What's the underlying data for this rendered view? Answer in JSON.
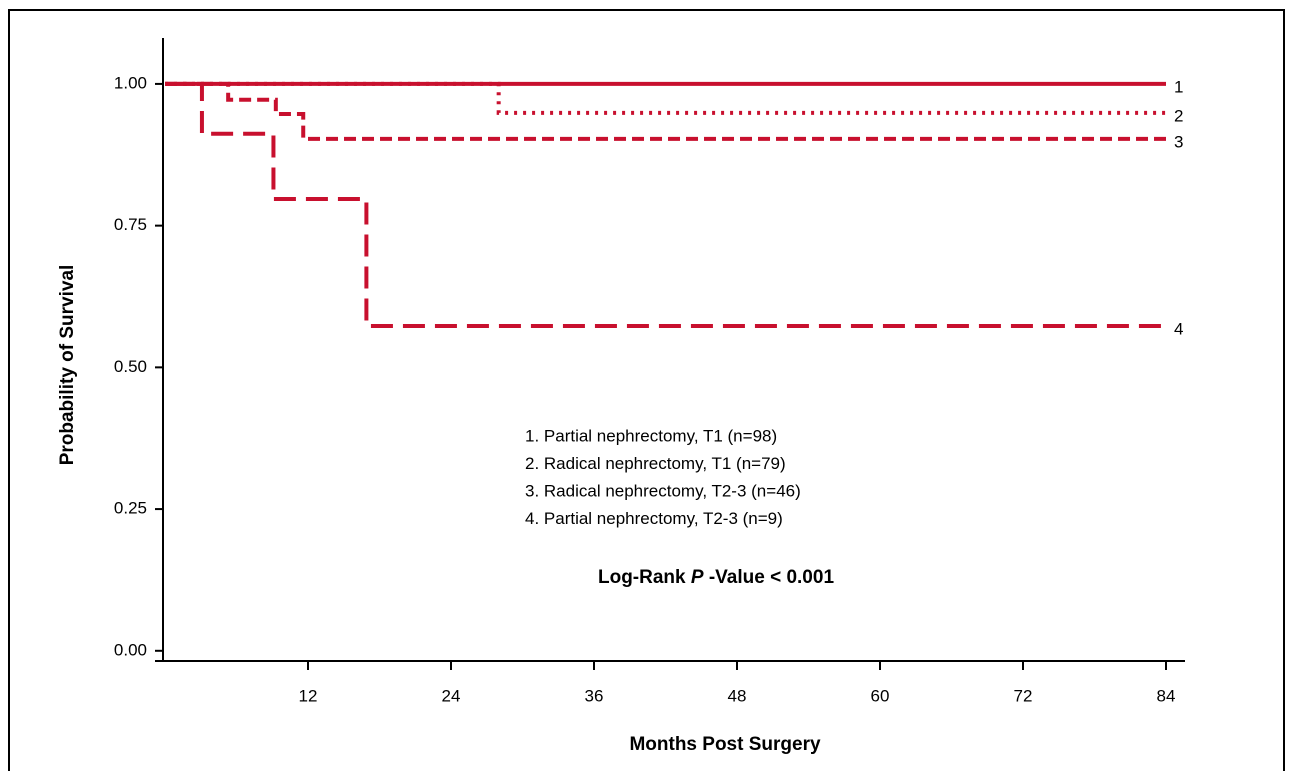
{
  "chart_data": {
    "type": "step",
    "xlabel": "Months Post Surgery",
    "ylabel": "Probability of Survival",
    "xlim": [
      0,
      86
    ],
    "ylim": [
      -0.018,
      1.081
    ],
    "xticks": [
      12,
      24,
      36,
      48,
      60,
      72,
      84
    ],
    "yticks": [
      {
        "value": 0,
        "label": "0.00"
      },
      {
        "value": 0.25,
        "label": "0.25"
      },
      {
        "value": 0.5,
        "label": "0.50"
      },
      {
        "value": 0.75,
        "label": "0.75"
      },
      {
        "value": 1,
        "label": "1.00"
      }
    ],
    "series": [
      {
        "name": "1. Partial nephrectomy, T1 (n=98)",
        "end_label": "1",
        "color": "#c8102e",
        "dash": "solid",
        "x": [
          0,
          84
        ],
        "values": [
          1,
          1
        ]
      },
      {
        "name": "2. Radical nephrectomy, T1 (n=79)",
        "end_label": "2",
        "color": "#c8102e",
        "dash": "dotted",
        "x": [
          0,
          28,
          84
        ],
        "values": [
          1,
          0.949,
          0.949
        ]
      },
      {
        "name": "3. Radical nephrectomy, T2-3 (n=46)",
        "end_label": "3",
        "color": "#c8102e",
        "dash": "short",
        "x": [
          0,
          5.3,
          9.3,
          11.6,
          84
        ],
        "values": [
          1,
          0.972,
          0.947,
          0.903,
          0.903
        ]
      },
      {
        "name": "4. Partial nephrectomy, T2-3 (n=9)",
        "end_label": "4",
        "color": "#c8102e",
        "dash": "long",
        "x": [
          0,
          3.1,
          9.1,
          16.9,
          84
        ],
        "values": [
          1,
          0.912,
          0.797,
          0.573,
          0.573
        ]
      }
    ],
    "annotation": {
      "prefix": "Log-Rank ",
      "italic": "P",
      "suffix": " -Value < 0.001"
    }
  }
}
